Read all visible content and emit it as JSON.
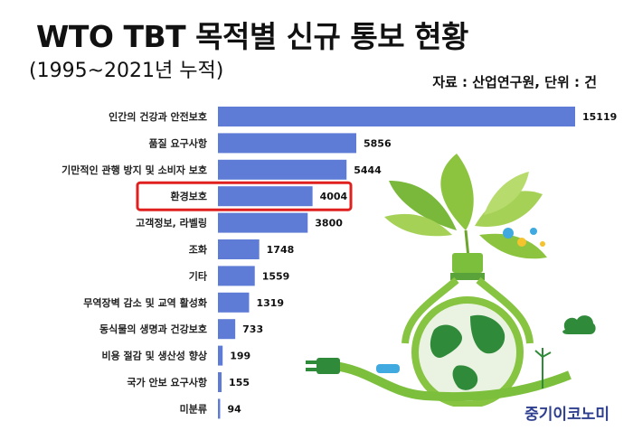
{
  "title": "WTO TBT 목적별 신규 통보 현황",
  "subtitle": "(1995~2021년 누적)",
  "source": "자료 : 산업연구원, 단위 : 건",
  "brand": "중기이코노미",
  "colors": {
    "bar": "#5e7bd6",
    "highlight": "#e0201e",
    "brand": "#2e3f8f",
    "leaf": "#8cc43f",
    "globe": "#2f8a3a"
  },
  "chart_data": {
    "type": "bar",
    "orientation": "horizontal",
    "categories": [
      "인간의 건강과 안전보호",
      "품질 요구사항",
      "기만적인 관행 방지 및 소비자 보호",
      "환경보호",
      "고객정보, 라벨링",
      "조화",
      "기타",
      "무역장벽 감소 및 교역 활성화",
      "동식물의 생명과 건강보호",
      "비용 절감 및 생산성 향상",
      "국가 안보 요구사항",
      "미분류"
    ],
    "values": [
      15119,
      5856,
      5444,
      4004,
      3800,
      1748,
      1559,
      1319,
      733,
      199,
      155,
      94
    ],
    "highlight": "환경보호",
    "xlim": [
      0,
      15119
    ]
  }
}
